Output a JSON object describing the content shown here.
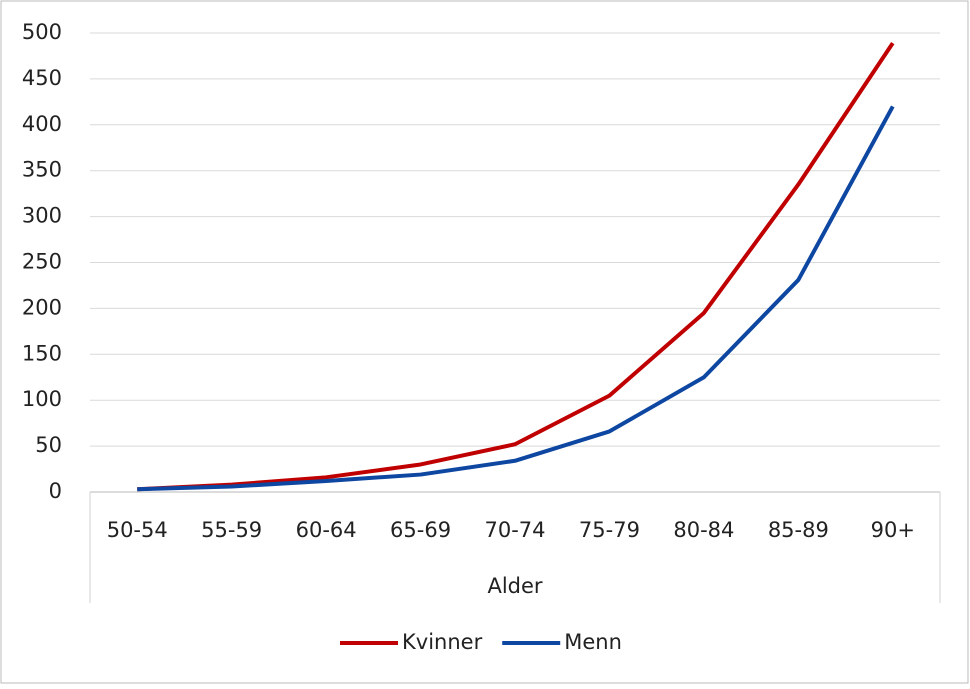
{
  "chart_data": {
    "type": "line",
    "x_label": "Alder",
    "categories": [
      "50-54",
      "55-59",
      "60-64",
      "65-69",
      "70-74",
      "75-79",
      "80-84",
      "85-89",
      "90+"
    ],
    "series": [
      {
        "name": "Kvinner",
        "color": "#c00000",
        "values": [
          3,
          8,
          16,
          30,
          52,
          105,
          195,
          335,
          489
        ]
      },
      {
        "name": "Menn",
        "color": "#0d47a1",
        "values": [
          3,
          6,
          12,
          19,
          34,
          66,
          125,
          231,
          420
        ]
      }
    ],
    "ylim": [
      0,
      500
    ],
    "yticks": [
      0,
      50,
      100,
      150,
      200,
      250,
      300,
      350,
      400,
      450,
      500
    ],
    "grid": true
  }
}
